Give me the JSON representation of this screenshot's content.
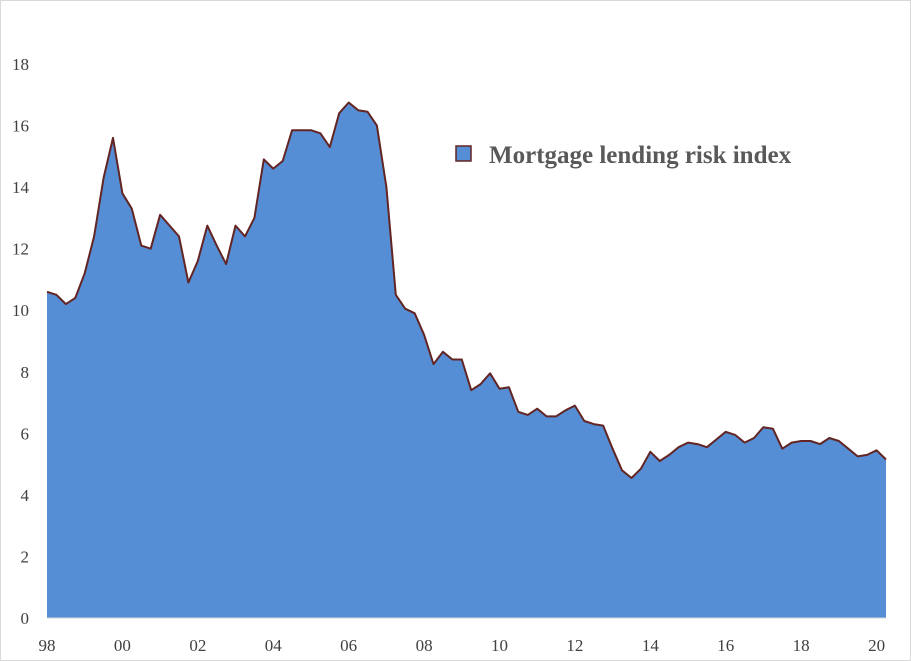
{
  "chart_data": {
    "type": "area",
    "title": "",
    "xlabel": "",
    "ylabel": "",
    "ylim": [
      0,
      18
    ],
    "yticks": [
      "0",
      "2",
      "4",
      "6",
      "8",
      "10",
      "12",
      "14",
      "16",
      "18"
    ],
    "xticks": [
      "98",
      "00",
      "02",
      "04",
      "06",
      "08",
      "10",
      "12",
      "14",
      "16",
      "18",
      "20"
    ],
    "xlim": [
      1998.0,
      2020.25
    ],
    "grid": false,
    "legend_position": "top-right",
    "colors": {
      "fill": "#558ed5",
      "line": "#632523",
      "axis": "#d9d9d9",
      "text": "#404040"
    },
    "series": [
      {
        "name": "Mortgage lending risk index",
        "x": [
          1998.0,
          1998.25,
          1998.5,
          1998.75,
          1999.0,
          1999.25,
          1999.5,
          1999.75,
          2000.0,
          2000.25,
          2000.5,
          2000.75,
          2001.0,
          2001.25,
          2001.5,
          2001.75,
          2002.0,
          2002.25,
          2002.5,
          2002.75,
          2003.0,
          2003.25,
          2003.5,
          2003.75,
          2004.0,
          2004.25,
          2004.5,
          2004.75,
          2005.0,
          2005.25,
          2005.5,
          2005.75,
          2006.0,
          2006.25,
          2006.5,
          2006.75,
          2007.0,
          2007.25,
          2007.5,
          2007.75,
          2008.0,
          2008.25,
          2008.5,
          2008.75,
          2009.0,
          2009.25,
          2009.5,
          2009.75,
          2010.0,
          2010.25,
          2010.5,
          2010.75,
          2011.0,
          2011.25,
          2011.5,
          2011.75,
          2012.0,
          2012.25,
          2012.5,
          2012.75,
          2013.0,
          2013.25,
          2013.5,
          2013.75,
          2014.0,
          2014.25,
          2014.5,
          2014.75,
          2015.0,
          2015.25,
          2015.5,
          2015.75,
          2016.0,
          2016.25,
          2016.5,
          2016.75,
          2017.0,
          2017.25,
          2017.5,
          2017.75,
          2018.0,
          2018.25,
          2018.5,
          2018.75,
          2019.0,
          2019.25,
          2019.5,
          2019.75,
          2020.0,
          2020.25
        ],
        "values": [
          10.6,
          10.5,
          10.2,
          10.4,
          11.2,
          12.4,
          14.3,
          15.6,
          13.8,
          13.3,
          12.1,
          12.0,
          13.1,
          12.75,
          12.4,
          10.9,
          11.6,
          12.75,
          12.1,
          11.5,
          12.75,
          12.4,
          13.0,
          14.9,
          14.6,
          14.85,
          15.85,
          15.85,
          15.85,
          15.75,
          15.3,
          16.4,
          16.75,
          16.5,
          16.45,
          16.0,
          14.0,
          10.5,
          10.05,
          9.9,
          9.2,
          8.25,
          8.65,
          8.4,
          8.4,
          7.4,
          7.6,
          7.95,
          7.45,
          7.5,
          6.7,
          6.6,
          6.8,
          6.55,
          6.55,
          6.75,
          6.9,
          6.4,
          6.3,
          6.25,
          5.5,
          4.8,
          4.55,
          4.85,
          5.4,
          5.1,
          5.3,
          5.55,
          5.7,
          5.65,
          5.55,
          5.8,
          6.05,
          5.95,
          5.7,
          5.85,
          6.2,
          6.15,
          5.5,
          5.7,
          5.75,
          5.75,
          5.65,
          5.85,
          5.75,
          5.5,
          5.25,
          5.3,
          5.45,
          5.15
        ]
      }
    ]
  }
}
